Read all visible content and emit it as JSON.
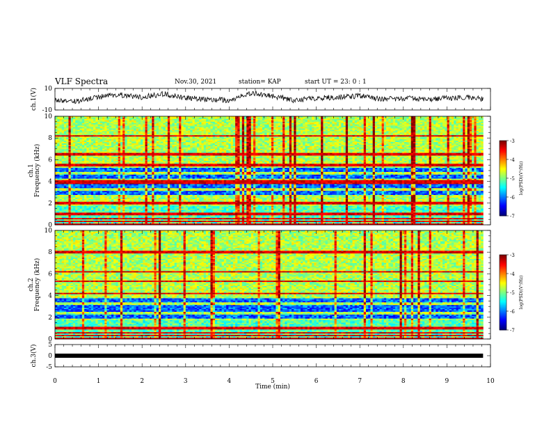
{
  "header": {
    "title": "VLF Spectra",
    "date": "Nov.30, 2021",
    "station": "station= KAP",
    "start": "start  UT =  23: 0  : 1"
  },
  "chart_data": [
    {
      "type": "line",
      "panel": "ch1-waveform",
      "ylabel": "ch.1(V)",
      "ylim": [
        -10,
        10
      ],
      "yticks": [
        "10",
        "-10"
      ],
      "xlim": [
        0,
        10
      ],
      "data_end_min": 9.83,
      "trace_color": "#000000",
      "series_samples_min": [
        0,
        0.5,
        1.0,
        1.5,
        2.0,
        2.5,
        3.0,
        3.5,
        4.0,
        4.5,
        5.0,
        5.5,
        6.0,
        6.5,
        7.0,
        7.5,
        8.0,
        8.5,
        9.0,
        9.5,
        9.8
      ],
      "series_values_v": [
        -1,
        -2,
        2,
        4,
        2,
        5,
        1,
        0,
        -1,
        6,
        3,
        -1,
        1,
        2,
        3,
        0,
        1,
        0,
        1,
        2,
        0
      ]
    },
    {
      "type": "heatmap",
      "panel": "ch1-spectrogram",
      "ylabel": "Frequency (kHz)",
      "channel_label": "ch.1",
      "ylim": [
        0,
        10
      ],
      "yticks": [
        "0",
        "2",
        "4",
        "6",
        "8",
        "10"
      ],
      "colorbar": {
        "label": "log(PSD)(V²/Hz)",
        "range": [
          -7,
          -3
        ],
        "ticks": [
          "-3",
          "-4",
          "-5",
          "-6",
          "-7"
        ]
      },
      "dark_bands_khz": [
        [
          2.8,
          3.1
        ],
        [
          3.4,
          3.8
        ],
        [
          4.3,
          4.6
        ],
        [
          4.9,
          5.2
        ]
      ],
      "lines_khz": [
        0.3,
        0.6,
        1.0,
        2.0,
        3.8,
        4.0,
        5.5,
        6.5,
        8.2
      ]
    },
    {
      "type": "heatmap",
      "panel": "ch2-spectrogram",
      "ylabel": "Frequency (kHz)",
      "channel_label": "ch.2",
      "ylim": [
        0,
        10
      ],
      "yticks": [
        "0",
        "2",
        "4",
        "6",
        "8",
        "10"
      ],
      "colorbar": {
        "label": "log(PSD)(V²/Hz)",
        "range": [
          -7,
          -3
        ],
        "ticks": [
          "-3",
          "-4",
          "-5",
          "-6",
          "-7"
        ]
      },
      "dark_bands_khz": [
        [
          1.9,
          2.2
        ],
        [
          2.5,
          3.1
        ],
        [
          3.4,
          3.7
        ]
      ],
      "lines_khz": [
        0.3,
        0.6,
        1.0,
        4.2,
        5.3,
        6.2,
        8.0
      ]
    },
    {
      "type": "line",
      "panel": "ch3-waveform",
      "ylabel": "ch.3(V)",
      "ylim": [
        -5,
        5
      ],
      "yticks": [
        "5",
        "0",
        "-5"
      ],
      "xlim": [
        0,
        10
      ],
      "xlabel": "Time (min)",
      "xticks": [
        "0",
        "1",
        "2",
        "3",
        "4",
        "5",
        "6",
        "7",
        "8",
        "9",
        "10"
      ],
      "trace_color": "#000000",
      "constant_value_v": 0
    }
  ]
}
